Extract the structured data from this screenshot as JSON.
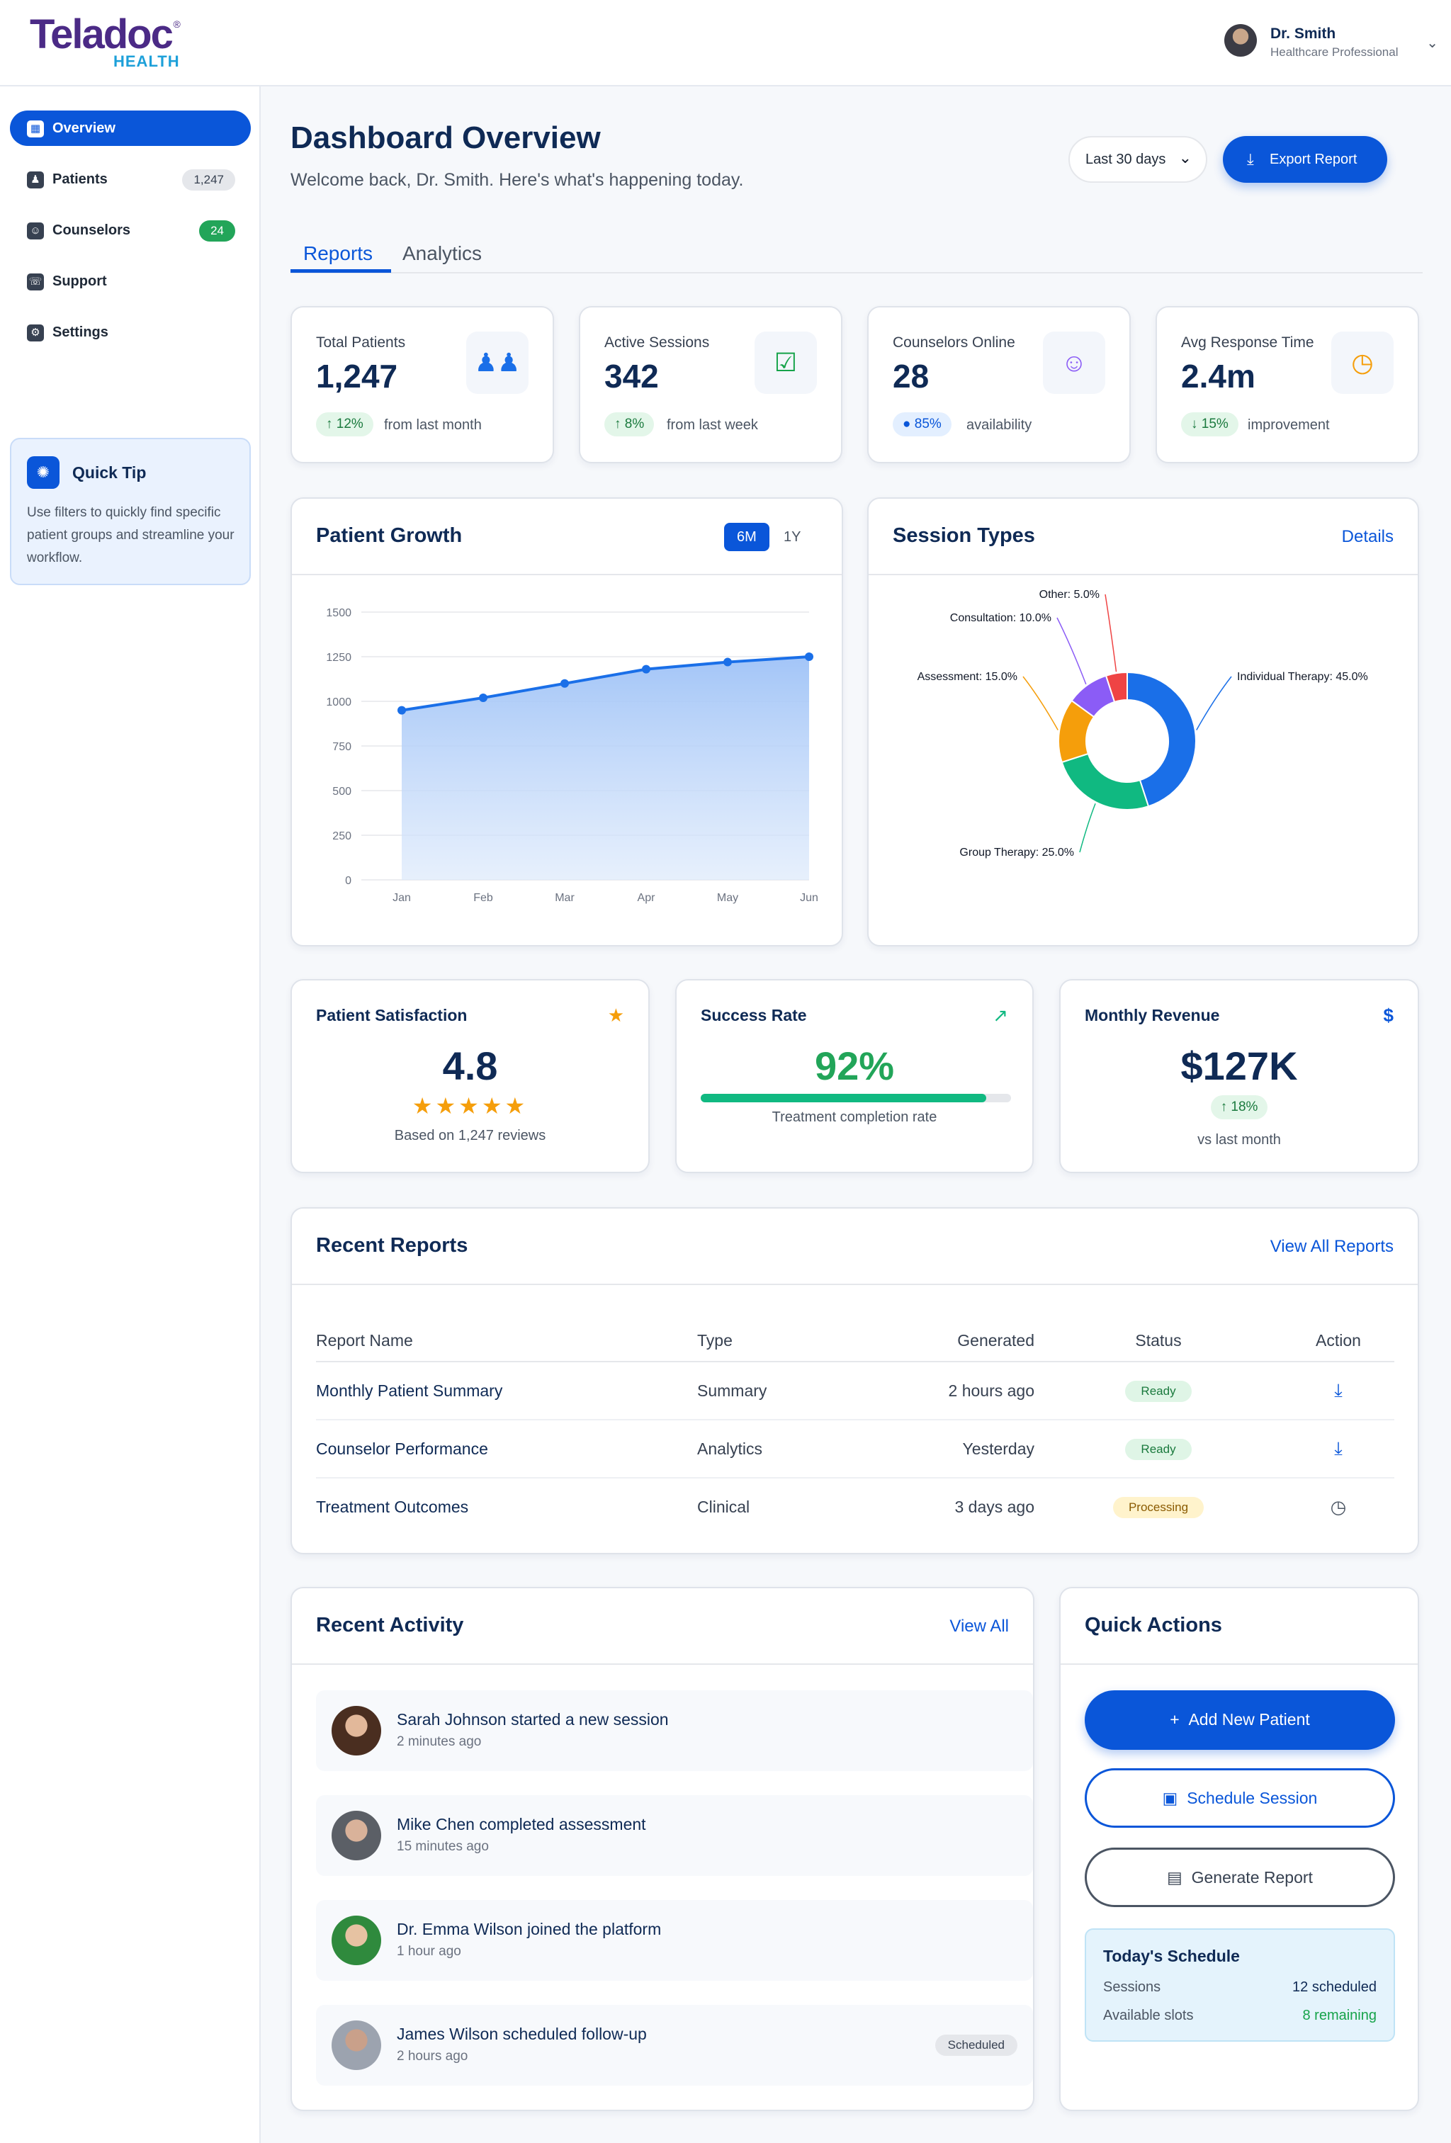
{
  "header": {
    "logo_text": "Teladoc",
    "logo_sub": "HEALTH",
    "logo_reg": "®",
    "user_name": "Dr. Smith",
    "user_role": "Healthcare Professional"
  },
  "sidebar": {
    "items": [
      {
        "label": "Overview",
        "icon": "layout-icon",
        "active": true
      },
      {
        "label": "Patients",
        "icon": "patient-icon",
        "count": "1,247"
      },
      {
        "label": "Counselors",
        "icon": "counselor-icon",
        "count": "24"
      },
      {
        "label": "Support",
        "icon": "headset-icon"
      },
      {
        "label": "Settings",
        "icon": "gear-icon"
      }
    ],
    "tip": {
      "title": "Quick Tip",
      "body": "Use filters to quickly find specific patient groups and streamline your workflow."
    }
  },
  "main": {
    "title": "Dashboard Overview",
    "subtitle": "Welcome back, Dr. Smith. Here's what's happening today.",
    "range_label": "Last 30 days",
    "export_label": "Export Report",
    "tabs": [
      {
        "label": "Reports"
      },
      {
        "label": "Analytics"
      }
    ]
  },
  "stats": [
    {
      "label": "Total Patients",
      "value": "1,247",
      "delta": "12%",
      "note": "from last month",
      "icon": "users-icon"
    },
    {
      "label": "Active Sessions",
      "value": "342",
      "delta": "8%",
      "note": "from last week",
      "icon": "calendar-check-icon"
    },
    {
      "label": "Counselors Online",
      "value": "28",
      "delta": "85%",
      "note": "availability",
      "icon": "counselor-icon"
    },
    {
      "label": "Avg Response Time",
      "value": "2.4m",
      "delta": "15%",
      "note": "improvement",
      "icon": "clock-icon"
    }
  ],
  "growth": {
    "title": "Patient Growth",
    "seg_6m": "6M",
    "seg_1y": "1Y"
  },
  "sessions": {
    "title": "Session Types",
    "link": "Details"
  },
  "chart_data": [
    {
      "type": "area",
      "categories": [
        "Jan",
        "Feb",
        "Mar",
        "Apr",
        "May",
        "Jun"
      ],
      "values": [
        950,
        1020,
        1100,
        1180,
        1220,
        1250
      ],
      "ylim": [
        0,
        1500
      ],
      "yticks": [
        0,
        250,
        500,
        750,
        1000,
        1250,
        1500
      ],
      "color": "#1a6fe8",
      "grid": true
    },
    {
      "type": "pie",
      "donut": true,
      "slices": [
        {
          "label": "Individual Therapy: 45.0%",
          "value": 45.0,
          "color": "#1a6fe8"
        },
        {
          "label": "Group Therapy: 25.0%",
          "value": 25.0,
          "color": "#10b981"
        },
        {
          "label": "Assessment: 15.0%",
          "value": 15.0,
          "color": "#f59e0b"
        },
        {
          "label": "Consultation: 10.0%",
          "value": 10.0,
          "color": "#8b5cf6"
        },
        {
          "label": "Other: 5.0%",
          "value": 5.0,
          "color": "#ef4444"
        }
      ]
    }
  ],
  "metrics": {
    "satisfaction": {
      "title": "Patient Satisfaction",
      "value": "4.8",
      "stars": 5,
      "caption": "Based on 1,247 reviews"
    },
    "success": {
      "title": "Success Rate",
      "value": "92%",
      "progress": 0.92,
      "caption": "Treatment completion rate"
    },
    "revenue": {
      "title": "Monthly Revenue",
      "value": "$127K",
      "delta": "18%",
      "caption": "vs last month"
    }
  },
  "reports": {
    "title": "Recent Reports",
    "link": "View All Reports",
    "columns": [
      "Report Name",
      "Type",
      "Generated",
      "Status",
      "Action"
    ],
    "rows": [
      {
        "name": "Monthly Patient Summary",
        "type": "Summary",
        "generated": "2 hours ago",
        "status": "Ready",
        "action_icon": "download-icon"
      },
      {
        "name": "Counselor Performance",
        "type": "Analytics",
        "generated": "Yesterday",
        "status": "Ready",
        "action_icon": "download-icon"
      },
      {
        "name": "Treatment Outcomes",
        "type": "Clinical",
        "generated": "3 days ago",
        "status": "Processing",
        "action_icon": "clock-icon"
      }
    ]
  },
  "activity": {
    "title": "Recent Activity",
    "link": "View All",
    "items": [
      {
        "text": "Sarah Johnson started a new session",
        "time": "2 minutes ago"
      },
      {
        "text": "Mike Chen completed assessment",
        "time": "15 minutes ago"
      },
      {
        "text": "Dr. Emma Wilson joined the platform",
        "time": "1 hour ago"
      },
      {
        "text": "James Wilson scheduled follow-up",
        "time": "2 hours ago",
        "tag": "Scheduled"
      }
    ]
  },
  "quick_actions": {
    "title": "Quick Actions",
    "add_patient": "Add New Patient",
    "schedule": "Schedule Session",
    "generate": "Generate Report",
    "today": {
      "title": "Today's Schedule",
      "sessions_label": "Sessions",
      "sessions_value": "12 scheduled",
      "slots_label": "Available slots",
      "slots_value": "8 remaining"
    }
  },
  "colors": {
    "accent": "#0a56d9",
    "success": "#16a34a",
    "warning": "#f59e0b"
  }
}
